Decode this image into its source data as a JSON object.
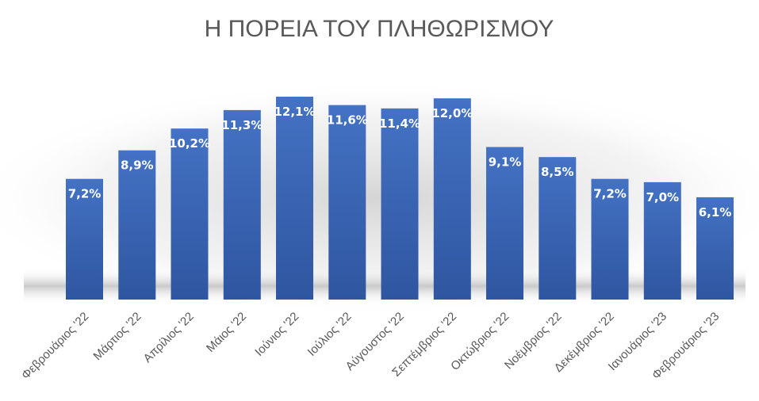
{
  "chart_data": {
    "type": "bar",
    "title": "Η ΠΟΡΕΙΑ ΤΟΥ ΠΛΗΘΩΡΙΣΜΟΥ",
    "xlabel": "",
    "ylabel": "",
    "categories": [
      "Φεβρουάριος '22",
      "Μάρτιος '22",
      "Απρίλιος '22",
      "Μάιος '22",
      "Ιούνιος '22",
      "Ιούλιος '22",
      "Αύγουστος '22",
      "Σεπτέμβριος '22",
      "Οκτώβριος '22",
      "Νοέμβριος '22",
      "Δεκέμβριος '22",
      "Ιανουάριος '23",
      "Φεβρουάριος '23"
    ],
    "values": [
      7.2,
      8.9,
      10.2,
      11.3,
      12.1,
      11.6,
      11.4,
      12.0,
      9.1,
      8.5,
      7.2,
      7.0,
      6.1
    ],
    "data_labels": [
      "7,2%",
      "8,9%",
      "10,2%",
      "11,3%",
      "12,1%",
      "11,6%",
      "11,4%",
      "12,0%",
      "9,1%",
      "8,5%",
      "7,2%",
      "7,0%",
      "6,1%"
    ],
    "ylim": [
      0,
      12.1
    ],
    "grid": false,
    "legend": "none",
    "bar_color": "#4472C4",
    "bar_color_dark": "#2F56A0",
    "text_color": "#595959"
  }
}
